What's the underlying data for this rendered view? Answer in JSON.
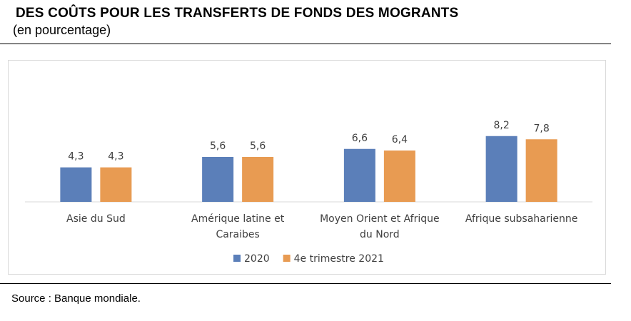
{
  "header": {
    "title": "DES COÛTS POUR LES TRANSFERTS DE FONDS DES MOGRANTS",
    "subtitle": "(en pourcentage)"
  },
  "footer": {
    "source": "Source : Banque mondiale."
  },
  "chart_data": {
    "type": "bar",
    "title": "DES COÛTS POUR LES TRANSFERTS DE FONDS DES MOGRANTS",
    "subtitle": "(en pourcentage)",
    "categories": [
      [
        "Asie du Sud"
      ],
      [
        "Amérique latine et",
        "Caraibes"
      ],
      [
        "Moyen Orient et Afrique",
        "du Nord"
      ],
      [
        "Afrique subsaharienne"
      ]
    ],
    "series": [
      {
        "name": "2020",
        "values": [
          4.3,
          5.6,
          6.6,
          8.2
        ],
        "labels": [
          "4,3",
          "5,6",
          "6,6",
          "8,2"
        ],
        "color": "#5b7fb9"
      },
      {
        "name": "4e trimestre 2021",
        "values": [
          4.3,
          5.6,
          6.4,
          7.8
        ],
        "labels": [
          "4,3",
          "5,6",
          "6,4",
          "7,8"
        ],
        "color": "#e89b52"
      }
    ],
    "ylim": [
      0,
      9
    ],
    "grid": false,
    "legend": "bottom",
    "xlabel": "",
    "ylabel": ""
  }
}
